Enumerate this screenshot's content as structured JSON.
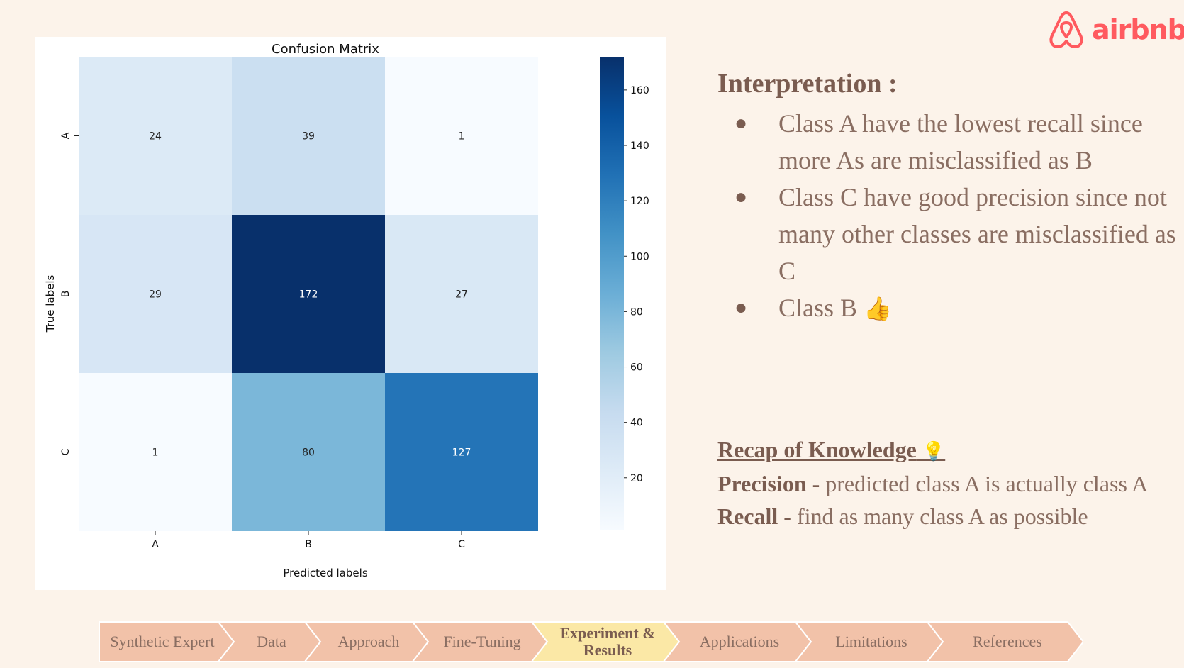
{
  "logo": {
    "text": "airbnb",
    "color": "#ff5a5f"
  },
  "chart_data": {
    "type": "heatmap",
    "title": "Confusion Matrix",
    "xlabel": "Predicted labels",
    "ylabel": "True labels",
    "x_categories": [
      "A",
      "B",
      "C"
    ],
    "y_categories": [
      "A",
      "B",
      "C"
    ],
    "values": [
      [
        24,
        39,
        1
      ],
      [
        29,
        172,
        27
      ],
      [
        1,
        80,
        127
      ]
    ],
    "colormap": "Blues",
    "colorbar": {
      "min": 1,
      "max": 172,
      "ticks": [
        20,
        40,
        60,
        80,
        100,
        120,
        140,
        160
      ]
    }
  },
  "interpretation": {
    "title": "Interpretation :",
    "bullets": [
      {
        "text": "Class A have the lowest recall since more As are misclassified as B"
      },
      {
        "text": "Class C have good precision since not many other classes are misclassified as C"
      },
      {
        "text": "Class B",
        "icon": "thumbs-up-icon"
      }
    ]
  },
  "recap": {
    "title": "Recap of Knowledge",
    "title_icon": "lightbulb-icon",
    "lines": [
      {
        "term": "Precision -",
        "text": " predicted class A is actually class A"
      },
      {
        "term": "Recall -",
        "text": " find as many class A as possible"
      }
    ]
  },
  "nav": {
    "colors": {
      "normal": "#f2c2a9",
      "active": "#fbe8a6"
    },
    "steps": [
      {
        "label": "Synthetic Expert",
        "active": false
      },
      {
        "label": "Data",
        "active": false
      },
      {
        "label": "Approach",
        "active": false
      },
      {
        "label": "Fine-Tuning",
        "active": false
      },
      {
        "label": "Experiment & Results",
        "active": true
      },
      {
        "label": "Applications",
        "active": false
      },
      {
        "label": "Limitations",
        "active": false
      },
      {
        "label": "References",
        "active": false
      }
    ]
  }
}
